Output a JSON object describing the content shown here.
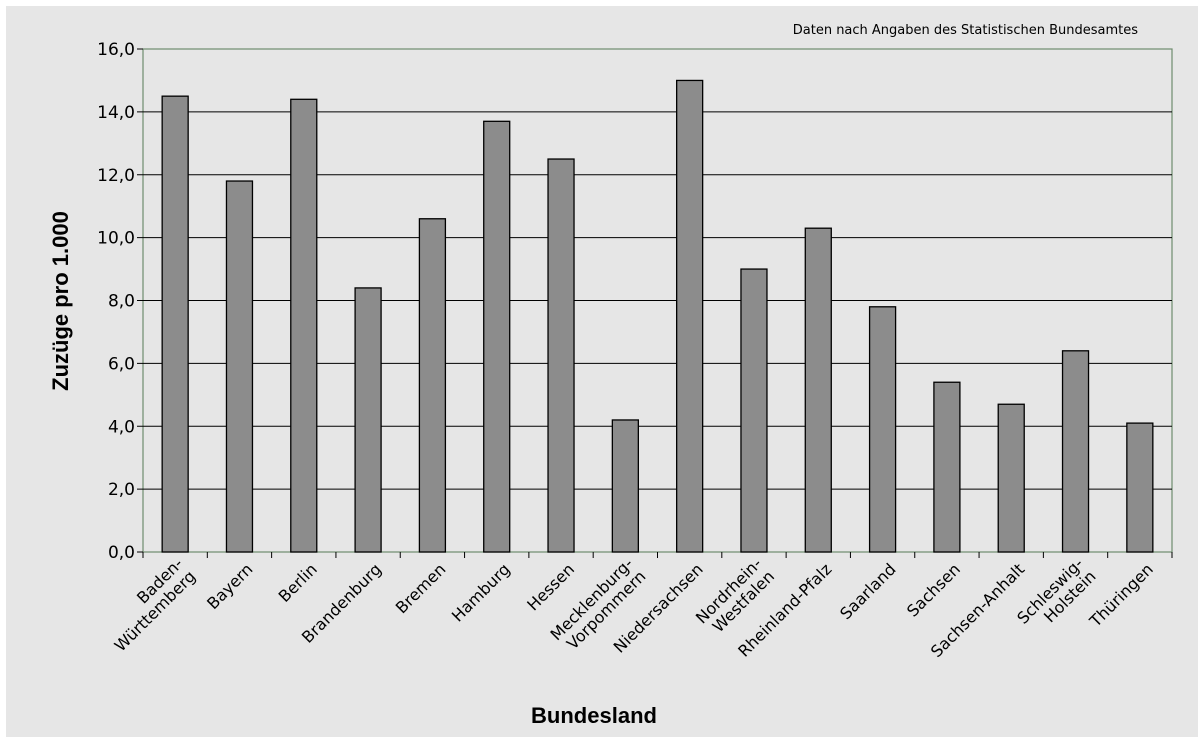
{
  "chart_data": {
    "type": "bar",
    "source_note": "Daten nach Angaben des Statistischen Bundesamtes",
    "xlabel": "Bundesland",
    "ylabel": "Zuzüge pro 1.000",
    "ylim": [
      0,
      16
    ],
    "yticks": [
      "0,0",
      "2,0",
      "4,0",
      "6,0",
      "8,0",
      "10,0",
      "12,0",
      "14,0",
      "16,0"
    ],
    "grid": true,
    "categories": [
      [
        "Baden-",
        "Württemberg"
      ],
      [
        "Bayern"
      ],
      [
        "Berlin"
      ],
      [
        "Brandenburg"
      ],
      [
        "Bremen"
      ],
      [
        "Hamburg"
      ],
      [
        "Hessen"
      ],
      [
        "Mecklenburg-",
        "Vorpommern"
      ],
      [
        "Niedersachsen"
      ],
      [
        "Nordrhein-",
        "Westfalen"
      ],
      [
        "Rheinland-Pfalz"
      ],
      [
        "Saarland"
      ],
      [
        "Sachsen"
      ],
      [
        "Sachsen-Anhalt"
      ],
      [
        "Schleswig-",
        "Holstein"
      ],
      [
        "Thüringen"
      ]
    ],
    "values": [
      14.5,
      11.8,
      14.4,
      8.4,
      10.6,
      13.7,
      12.5,
      4.2,
      15.0,
      9.0,
      10.3,
      7.8,
      5.4,
      4.7,
      6.4,
      4.1
    ],
    "colors": {
      "bar": "#8c8c8c",
      "bar_outline": "#000000",
      "grid": "#000000",
      "axis": "#6e8c6e",
      "background": "#e6e6e6"
    }
  }
}
